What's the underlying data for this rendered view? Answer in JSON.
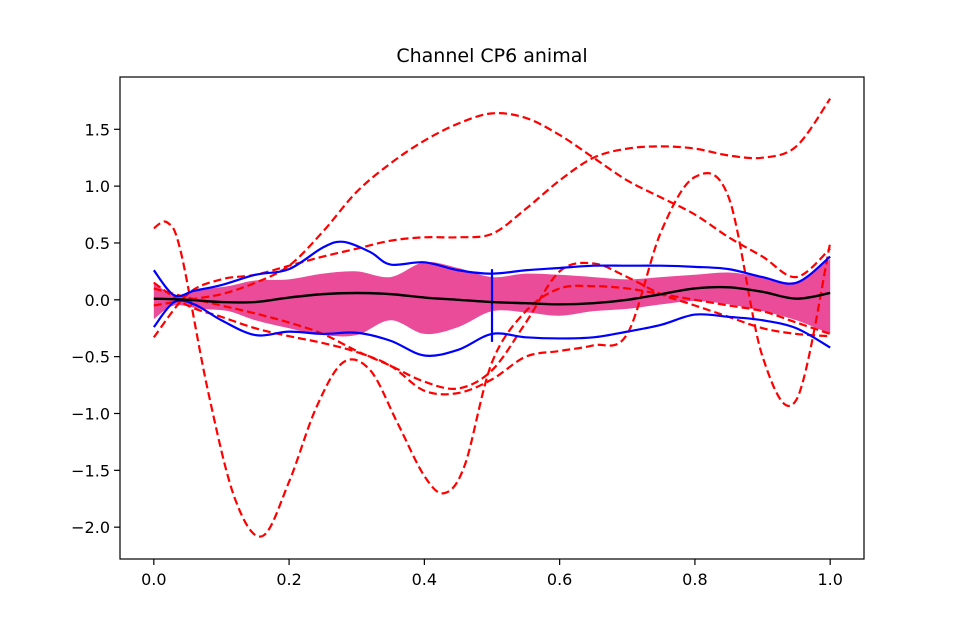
{
  "chart_data": {
    "type": "line",
    "title": "Channel CP6 animal",
    "xlabel": "",
    "ylabel": "",
    "xlim": [
      -0.05,
      1.05
    ],
    "ylim": [
      -2.28,
      1.96
    ],
    "grid": false,
    "legend": "none",
    "x_ticks": [
      0.0,
      0.2,
      0.4,
      0.6,
      0.8,
      1.0
    ],
    "x_tick_labels": [
      "0.0",
      "0.2",
      "0.4",
      "0.6",
      "0.8",
      "1.0"
    ],
    "y_ticks": [
      1.5,
      1.0,
      0.5,
      0.0,
      -0.5,
      -1.0,
      -1.5,
      -2.0
    ],
    "y_tick_labels": [
      "1.5",
      "1.0",
      "0.5",
      "0.0",
      "−0.5",
      "−1.0",
      "−1.5",
      "−2.0"
    ],
    "colors": {
      "band": "#ea4c9a",
      "outer": "#0000ff",
      "outliers": "#ff0000",
      "median": "#000000"
    },
    "band": {
      "x": [
        0.0,
        0.03,
        0.07,
        0.11,
        0.15,
        0.2,
        0.25,
        0.3,
        0.35,
        0.4,
        0.45,
        0.5,
        0.55,
        0.6,
        0.65,
        0.7,
        0.75,
        0.8,
        0.85,
        0.9,
        0.95,
        1.0
      ],
      "upper": [
        0.16,
        0.04,
        0.09,
        0.12,
        0.17,
        0.18,
        0.23,
        0.25,
        0.2,
        0.33,
        0.28,
        0.2,
        0.23,
        0.22,
        0.2,
        0.18,
        0.2,
        0.22,
        0.24,
        0.2,
        0.16,
        0.36
      ],
      "lower": [
        -0.17,
        -0.05,
        -0.08,
        -0.1,
        -0.18,
        -0.25,
        -0.31,
        -0.31,
        -0.18,
        -0.3,
        -0.24,
        -0.1,
        -0.11,
        -0.14,
        -0.1,
        -0.08,
        -0.04,
        -0.01,
        -0.04,
        -0.1,
        -0.18,
        -0.3
      ]
    },
    "series": [
      {
        "role": "median",
        "x": [
          0.0,
          0.05,
          0.1,
          0.15,
          0.2,
          0.25,
          0.3,
          0.35,
          0.4,
          0.45,
          0.5,
          0.55,
          0.6,
          0.65,
          0.7,
          0.75,
          0.8,
          0.85,
          0.9,
          0.95,
          1.0
        ],
        "y": [
          0.01,
          0.0,
          -0.02,
          -0.02,
          0.02,
          0.05,
          0.06,
          0.05,
          0.02,
          0.0,
          -0.02,
          -0.03,
          -0.04,
          -0.03,
          0.0,
          0.05,
          0.1,
          0.11,
          0.07,
          0.01,
          0.06
        ]
      },
      {
        "role": "outer-upper",
        "x": [
          0.0,
          0.03,
          0.06,
          0.1,
          0.15,
          0.2,
          0.25,
          0.28,
          0.32,
          0.35,
          0.4,
          0.45,
          0.5,
          0.55,
          0.6,
          0.65,
          0.7,
          0.75,
          0.8,
          0.85,
          0.9,
          0.95,
          1.0
        ],
        "y": [
          0.26,
          0.04,
          0.08,
          0.13,
          0.22,
          0.27,
          0.46,
          0.51,
          0.42,
          0.31,
          0.33,
          0.26,
          0.23,
          0.26,
          0.28,
          0.3,
          0.3,
          0.3,
          0.29,
          0.27,
          0.2,
          0.15,
          0.38
        ]
      },
      {
        "role": "outer-lower",
        "x": [
          0.0,
          0.03,
          0.06,
          0.1,
          0.15,
          0.2,
          0.25,
          0.3,
          0.35,
          0.4,
          0.45,
          0.5,
          0.55,
          0.6,
          0.65,
          0.7,
          0.75,
          0.8,
          0.85,
          0.9,
          0.95,
          1.0
        ],
        "y": [
          -0.24,
          -0.02,
          -0.04,
          -0.18,
          -0.31,
          -0.28,
          -0.3,
          -0.29,
          -0.36,
          -0.49,
          -0.44,
          -0.3,
          -0.33,
          -0.34,
          -0.33,
          -0.28,
          -0.22,
          -0.13,
          -0.15,
          -0.18,
          -0.25,
          -0.42
        ]
      },
      {
        "role": "outer-step",
        "x": [
          0.5,
          0.5
        ],
        "y": [
          0.27,
          -0.37
        ]
      },
      {
        "role": "outlier-1",
        "x": [
          0.0,
          0.02,
          0.04,
          0.08,
          0.12,
          0.16,
          0.2,
          0.24,
          0.28,
          0.32,
          0.36,
          0.4,
          0.43,
          0.46,
          0.5,
          0.55,
          0.6,
          0.65,
          0.7,
          0.75,
          0.8,
          0.85,
          0.9,
          0.95,
          1.0
        ],
        "y": [
          0.63,
          0.68,
          0.42,
          -0.8,
          -1.75,
          -2.08,
          -1.6,
          -0.95,
          -0.55,
          -0.62,
          -1.08,
          -1.55,
          -1.7,
          -1.45,
          -0.55,
          -0.1,
          0.1,
          0.12,
          0.1,
          0.05,
          0.0,
          -0.05,
          -0.1,
          -0.2,
          -0.3
        ]
      },
      {
        "role": "outlier-2",
        "x": [
          0.0,
          0.05,
          0.1,
          0.15,
          0.2,
          0.25,
          0.3,
          0.35,
          0.4,
          0.45,
          0.5,
          0.55,
          0.6,
          0.65,
          0.7,
          0.75,
          0.8,
          0.85,
          0.9,
          0.95,
          1.0
        ],
        "y": [
          -0.33,
          0.05,
          0.18,
          0.22,
          0.3,
          0.38,
          0.45,
          0.52,
          0.55,
          0.55,
          0.58,
          0.8,
          1.05,
          1.25,
          1.33,
          1.35,
          1.33,
          1.27,
          1.25,
          1.35,
          1.77
        ]
      },
      {
        "role": "outlier-3",
        "x": [
          0.0,
          0.05,
          0.1,
          0.15,
          0.2,
          0.25,
          0.3,
          0.35,
          0.4,
          0.45,
          0.5,
          0.55,
          0.6,
          0.65,
          0.7,
          0.75,
          0.8,
          0.85,
          0.9,
          0.95,
          1.0
        ],
        "y": [
          -0.05,
          0.0,
          0.05,
          0.15,
          0.3,
          0.6,
          0.95,
          1.2,
          1.4,
          1.55,
          1.64,
          1.6,
          1.45,
          1.25,
          1.05,
          0.9,
          0.75,
          0.55,
          0.38,
          0.2,
          0.45
        ]
      },
      {
        "role": "outlier-4",
        "x": [
          0.0,
          0.05,
          0.1,
          0.15,
          0.2,
          0.25,
          0.3,
          0.35,
          0.4,
          0.45,
          0.5,
          0.55,
          0.6,
          0.65,
          0.7,
          0.75,
          0.8,
          0.85,
          0.9,
          0.95,
          1.0
        ],
        "y": [
          0.15,
          -0.05,
          -0.15,
          -0.25,
          -0.32,
          -0.38,
          -0.46,
          -0.58,
          -0.8,
          -0.82,
          -0.7,
          -0.5,
          -0.45,
          -0.4,
          -0.3,
          0.6,
          1.08,
          0.9,
          -0.5,
          -0.88,
          0.5
        ]
      },
      {
        "role": "outlier-5",
        "x": [
          0.0,
          0.05,
          0.1,
          0.15,
          0.2,
          0.25,
          0.3,
          0.35,
          0.4,
          0.45,
          0.5,
          0.55,
          0.6,
          0.65,
          0.7,
          0.75,
          0.8,
          0.85,
          0.9,
          0.95,
          1.0
        ],
        "y": [
          0.1,
          0.02,
          -0.05,
          -0.12,
          -0.2,
          -0.3,
          -0.45,
          -0.58,
          -0.72,
          -0.78,
          -0.62,
          -0.2,
          0.25,
          0.32,
          0.2,
          0.05,
          -0.05,
          -0.15,
          -0.25,
          -0.3,
          -0.32
        ]
      }
    ]
  }
}
